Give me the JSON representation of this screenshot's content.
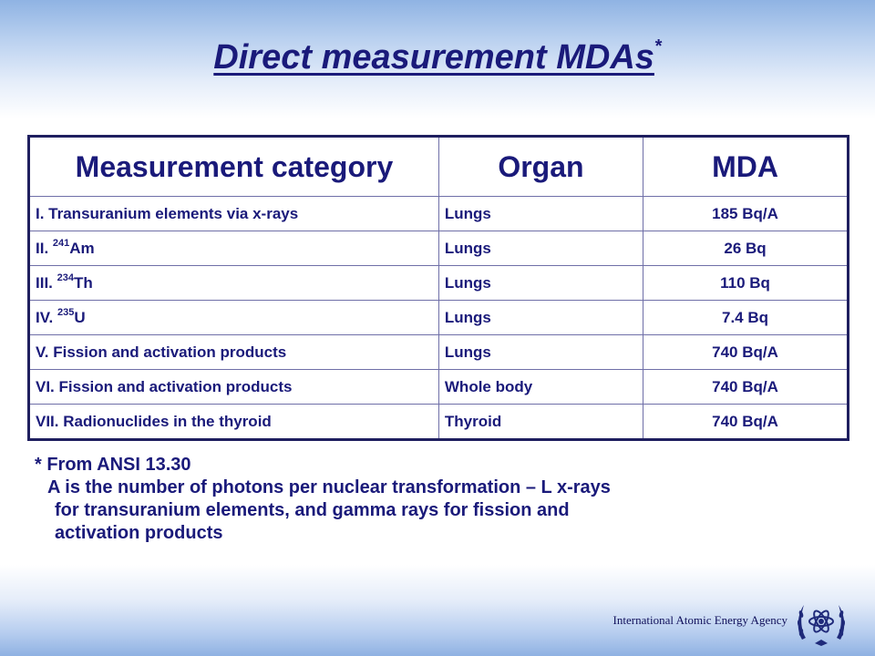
{
  "title": {
    "text": "Direct measurement MDAs",
    "marker": "*"
  },
  "table": {
    "headers": [
      "Measurement category",
      "Organ",
      "MDA"
    ],
    "rows": [
      {
        "prefix": "I. Transuranium elements via x-rays",
        "sup": "",
        "suffix": "",
        "organ": "Lungs",
        "mda": "185 Bq/A"
      },
      {
        "prefix": "II. ",
        "sup": "241",
        "suffix": "Am",
        "organ": "Lungs",
        "mda": "26 Bq"
      },
      {
        "prefix": "III. ",
        "sup": "234",
        "suffix": "Th",
        "organ": "Lungs",
        "mda": "110 Bq"
      },
      {
        "prefix": "IV. ",
        "sup": "235",
        "suffix": "U",
        "organ": "Lungs",
        "mda": "7.4 Bq"
      },
      {
        "prefix": "V. Fission and activation products",
        "sup": "",
        "suffix": "",
        "organ": "Lungs",
        "mda": "740 Bq/A"
      },
      {
        "prefix": "VI. Fission and activation products",
        "sup": "",
        "suffix": "",
        "organ": "Whole body",
        "mda": "740 Bq/A"
      },
      {
        "prefix": "VII. Radionuclides in the thyroid",
        "sup": "",
        "suffix": "",
        "organ": "Thyroid",
        "mda": "740 Bq/A"
      }
    ]
  },
  "footnote": {
    "line1": "* From ANSI 13.30",
    "line2": "A is the number of photons per nuclear transformation – L x-rays",
    "line3": "for transuranium elements, and gamma rays for fission and",
    "line4": "activation products"
  },
  "footer": {
    "agency": "International Atomic Energy Agency",
    "logo_icon": "iaea-atom-laurel-icon"
  },
  "colors": {
    "text": "#1a1a7a",
    "band_top": "#8fb3e3",
    "table_border": "#1f1f5f"
  }
}
